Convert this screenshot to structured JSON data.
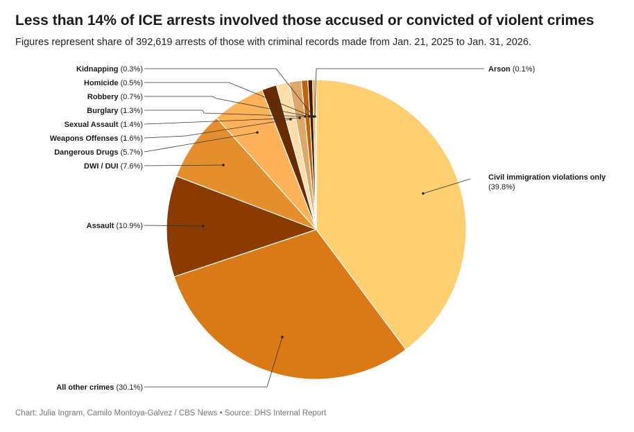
{
  "chart_data": {
    "type": "pie",
    "title": "Less than 14% of ICE arrests involved those accused or convicted of violent crimes",
    "subtitle": "Figures represent share of 392,619 arrests of those with criminal records made from Jan. 21, 2025 to Jan. 31, 2026.",
    "slices": [
      {
        "name": "Civil immigration violations only",
        "value": 39.8,
        "display": "(39.8%)",
        "color": "#FDCF71"
      },
      {
        "name": "All other crimes",
        "value": 30.1,
        "display": "(30.1%)",
        "color": "#D97A16"
      },
      {
        "name": "Assault",
        "value": 10.9,
        "display": "(10.9%)",
        "color": "#8B3A00"
      },
      {
        "name": "DWI / DUI",
        "value": 7.6,
        "display": "(7.6%)",
        "color": "#E58F2C"
      },
      {
        "name": "Dangerous Drugs",
        "value": 5.7,
        "display": "(5.7%)",
        "color": "#FDB25A"
      },
      {
        "name": "Weapons Offenses",
        "value": 1.6,
        "display": "(1.6%)",
        "color": "#6A2A00"
      },
      {
        "name": "Sexual Assault",
        "value": 1.4,
        "display": "(1.4%)",
        "color": "#FEDDA8"
      },
      {
        "name": "Burglary",
        "value": 1.3,
        "display": "(1.3%)",
        "color": "#E0A868"
      },
      {
        "name": "Robbery",
        "value": 0.7,
        "display": "(0.7%)",
        "color": "#C2620A"
      },
      {
        "name": "Homicide",
        "value": 0.5,
        "display": "(0.5%)",
        "color": "#4A1A00"
      },
      {
        "name": "Kidnapping",
        "value": 0.3,
        "display": "(0.3%)",
        "color": "#F3A640"
      },
      {
        "name": "Arson",
        "value": 0.1,
        "display": "(0.1%)",
        "color": "#A44F08"
      }
    ]
  },
  "footer": "Chart: Julia Ingram, Camilo Montoya-Galvez / CBS News  •  Source: DHS Internal Report"
}
